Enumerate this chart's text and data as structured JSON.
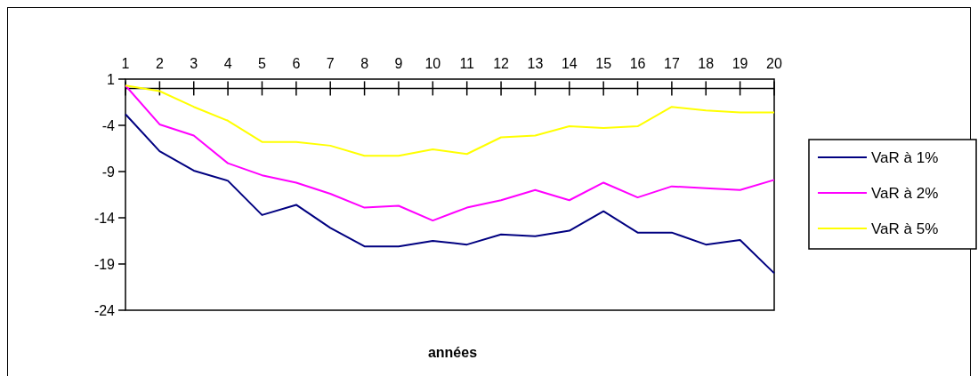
{
  "chart_data": {
    "type": "line",
    "xlabel": "années",
    "categories": [
      "1",
      "2",
      "3",
      "4",
      "5",
      "6",
      "7",
      "8",
      "9",
      "10",
      "11",
      "12",
      "13",
      "14",
      "15",
      "16",
      "17",
      "18",
      "19",
      "20"
    ],
    "series": [
      {
        "name": "VaR à 1%",
        "color": "#000080",
        "values": [
          -2.8,
          -6.8,
          -8.9,
          -10.0,
          -13.7,
          -12.6,
          -15.1,
          -17.1,
          -17.1,
          -16.5,
          -16.9,
          -15.8,
          -16.0,
          -15.4,
          -13.3,
          -15.6,
          -15.6,
          -16.9,
          -16.4,
          -20.0
        ]
      },
      {
        "name": "VaR à 2%",
        "color": "#ff00ff",
        "values": [
          0.3,
          -3.9,
          -5.1,
          -8.1,
          -9.4,
          -10.2,
          -11.4,
          -12.9,
          -12.7,
          -14.3,
          -12.9,
          -12.1,
          -11.0,
          -12.1,
          -10.2,
          -11.8,
          -10.6,
          -10.8,
          -11.0,
          -9.9
        ]
      },
      {
        "name": "VaR à 5%",
        "color": "#ffff00",
        "values": [
          0.3,
          -0.3,
          -2.0,
          -3.5,
          -5.8,
          -5.8,
          -6.2,
          -7.3,
          -7.3,
          -6.6,
          -7.1,
          -5.3,
          -5.1,
          -4.1,
          -4.3,
          -4.1,
          -2.0,
          -2.4,
          -2.6,
          -2.6
        ]
      }
    ],
    "ylim": [
      -24,
      1
    ],
    "yticks": [
      -24,
      -19,
      -14,
      -9,
      -4,
      1
    ],
    "grid": false,
    "legend": "right",
    "marker": "none",
    "line_style": "solid"
  }
}
